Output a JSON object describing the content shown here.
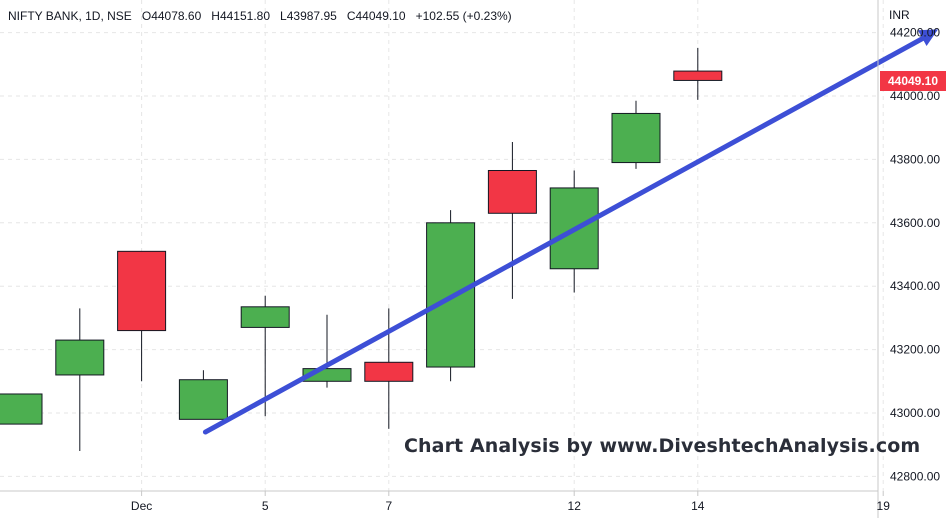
{
  "legend": {
    "symbol": "NIFTY BANK, 1D, NSE",
    "o_label": "O",
    "o_value": "44078.60",
    "h_label": "H",
    "h_value": "44151.80",
    "l_label": "L",
    "l_value": "43987.95",
    "c_label": "C",
    "c_value": "44049.10",
    "change": "+102.55 (+0.23%)"
  },
  "currency": "INR",
  "last_price": "44049.10",
  "watermark": "Chart Analysis by www.DiveshtechAnalysis.com",
  "colors": {
    "up": "#4caf50",
    "down": "#f23645",
    "trend_arrow": "#3d4fd6",
    "grid": "#e6e6e6"
  },
  "chart_data": {
    "type": "candlestick",
    "ylim": [
      42750,
      44250
    ],
    "y_ticks": [
      42800,
      43000,
      43200,
      43400,
      43600,
      43800,
      44000,
      44200
    ],
    "y_tick_labels": [
      "42800.00",
      "43000.00",
      "43200.00",
      "43400.00",
      "43600.00",
      "43800.00",
      "44000.00",
      "44200.00"
    ],
    "x_ticks": [
      {
        "label": "Dec",
        "slot": 2
      },
      {
        "label": "5",
        "slot": 4
      },
      {
        "label": "7",
        "slot": 6
      },
      {
        "label": "12",
        "slot": 9
      },
      {
        "label": "14",
        "slot": 11
      },
      {
        "label": "19",
        "slot": 14
      }
    ],
    "candles": [
      {
        "o": 42965,
        "h": 43060,
        "l": 42965,
        "c": 43060
      },
      {
        "o": 43120,
        "h": 43330,
        "l": 42880,
        "c": 43230
      },
      {
        "o": 43510,
        "h": 43510,
        "l": 43100,
        "c": 43260
      },
      {
        "o": 42980,
        "h": 43135,
        "l": 42980,
        "c": 43105
      },
      {
        "o": 43270,
        "h": 43370,
        "l": 42990,
        "c": 43335
      },
      {
        "o": 43100,
        "h": 43310,
        "l": 43080,
        "c": 43140
      },
      {
        "o": 43160,
        "h": 43330,
        "l": 42950,
        "c": 43100
      },
      {
        "o": 43145,
        "h": 43640,
        "l": 43100,
        "c": 43600
      },
      {
        "o": 43765,
        "h": 43855,
        "l": 43360,
        "c": 43630
      },
      {
        "o": 43455,
        "h": 43765,
        "l": 43380,
        "c": 43710
      },
      {
        "o": 43790,
        "h": 43985,
        "l": 43770,
        "c": 43945
      },
      {
        "o": 44078.6,
        "h": 44151.8,
        "l": 43987.95,
        "c": 44049.1
      }
    ],
    "trendline": {
      "from": {
        "slot": 3,
        "price": 42940
      },
      "to": {
        "slot": 15,
        "price": 44210
      }
    }
  }
}
